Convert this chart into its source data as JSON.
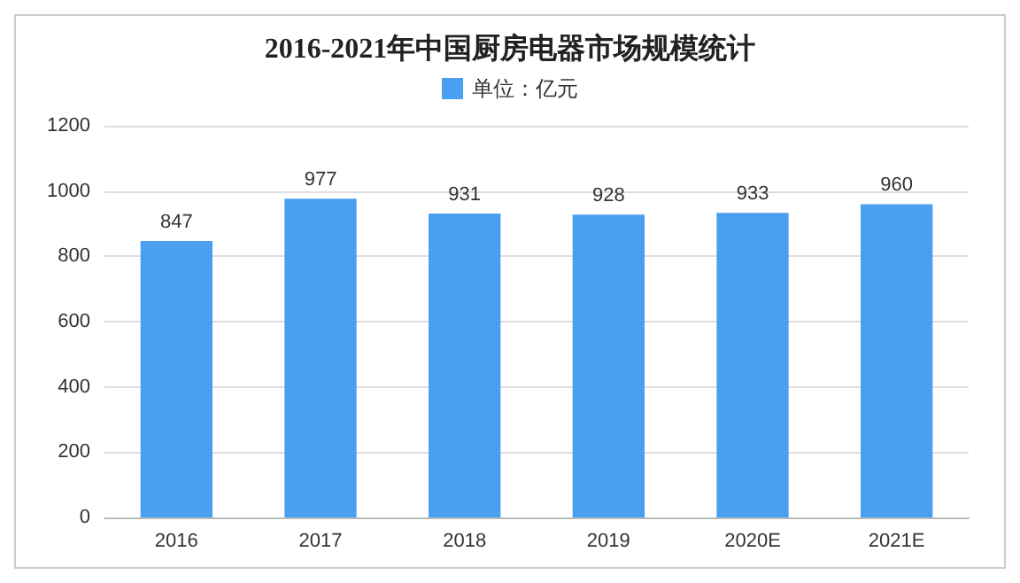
{
  "chart_data": {
    "type": "bar",
    "title": "2016-2021年中国厨房电器市场规模统计",
    "categories": [
      "2016",
      "2017",
      "2018",
      "2019",
      "2020E",
      "2021E"
    ],
    "series": [
      {
        "name": "单位：亿元",
        "color": "#4a9ff0",
        "values": [
          847,
          977,
          931,
          928,
          933,
          960
        ]
      }
    ],
    "ylim": [
      0,
      1200
    ],
    "yticks": [
      0,
      200,
      400,
      600,
      800,
      1000,
      1200
    ],
    "grid": "y",
    "legend": "top",
    "data_labels": true
  }
}
